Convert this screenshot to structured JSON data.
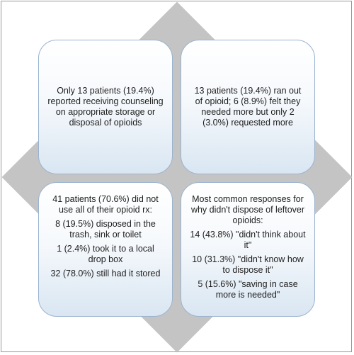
{
  "boxes": {
    "top_left": {
      "lines": [
        "Only 13 patients (19.4%) reported receiving counseling on appropriate storage or disposal of opioids"
      ]
    },
    "top_right": {
      "lines": [
        "13 patients (19.4%) ran out of opioid; 6 (8.9%) felt they needed more but only 2 (3.0%) requested more"
      ]
    },
    "bottom_left": {
      "lines": [
        "41 patients (70.6%) did not use all of their opioid rx:",
        "8 (19.5%) disposed in the trash, sink or toilet",
        "1 (2.4%) took it to a local drop box",
        "32 (78.0%) still had it stored"
      ]
    },
    "bottom_right": {
      "lines": [
        "Most common responses for why didn't dispose of leftover opioids:",
        "14 (43.8%) \"didn't think about it\"",
        "10 (31.3%) \"didn't know how to dispose it\"",
        "5 (15.6%) \"saving in case more is needed\""
      ]
    }
  },
  "colors": {
    "diamond": "#c4c4c4",
    "box_border": "#9ab3d0",
    "box_gradient_bottom": "#d9e6f2"
  }
}
